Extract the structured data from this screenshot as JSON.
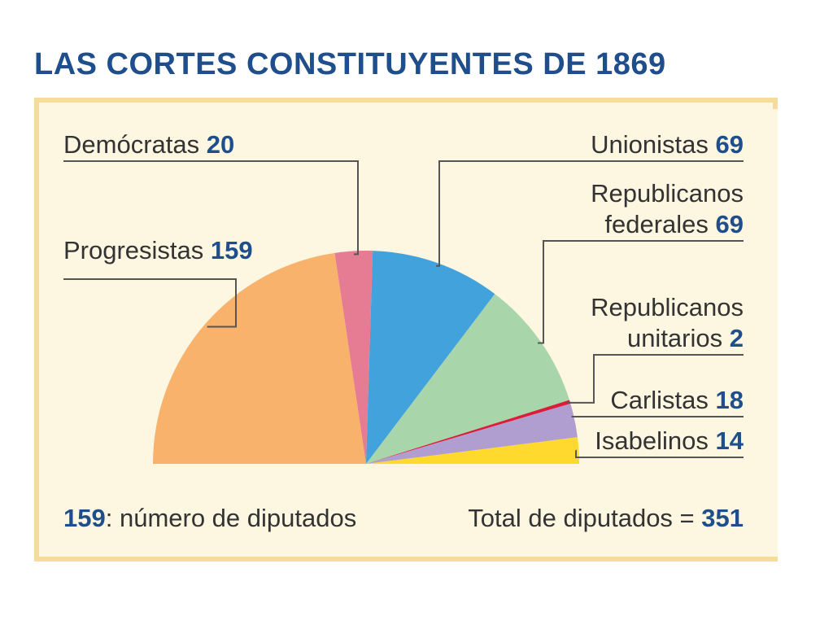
{
  "title": "LAS CORTES CONSTITUYENTES DE 1869",
  "chart_data": {
    "type": "pie",
    "shape": "semicircle",
    "title": "LAS CORTES CONSTITUYENTES DE 1869",
    "slices": [
      {
        "label": "Progresistas",
        "value": 159,
        "color": "#f8b26c"
      },
      {
        "label": "Demócratas",
        "value": 20,
        "color": "#e57c93"
      },
      {
        "label": "Unionistas",
        "value": 69,
        "color": "#42a2dc"
      },
      {
        "label": "Republicanos federales",
        "label_lines": [
          "Republicanos",
          "federales"
        ],
        "value": 69,
        "color": "#a9d5aa"
      },
      {
        "label": "Republicanos unitarios",
        "label_lines": [
          "Republicanos",
          "unitarios"
        ],
        "value": 2,
        "color": "#d81e3a"
      },
      {
        "label": "Carlistas",
        "value": 18,
        "color": "#b09ed1"
      },
      {
        "label": "Isabelinos",
        "value": 14,
        "color": "#ffd92e"
      }
    ],
    "note_value": "159",
    "note_text": ": número de diputados",
    "total_text": "Total de diputados = ",
    "total_value": "351"
  }
}
